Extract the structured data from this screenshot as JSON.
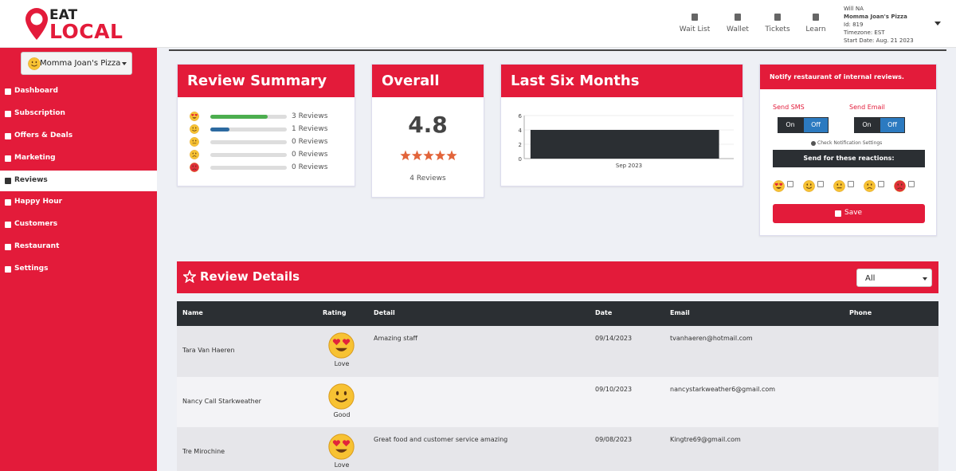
{
  "header": {
    "logo_top": "EAT",
    "logo_bottom": "LOCAL",
    "nav": [
      "Wait List",
      "Wallet",
      "Tickets",
      "Learn"
    ],
    "user": {
      "name": "Will NA",
      "restaurant": "Momma Joan's Pizza",
      "id": "Id: 819",
      "timezone": "Timezone: EST",
      "start_date": "Start Date: Aug. 21 2023"
    }
  },
  "sidebar": {
    "restaurant_select": "Momma Joan's Pizza",
    "menu": [
      "Dashboard",
      "Subscription",
      "Offers & Deals",
      "Marketing",
      "Reviews",
      "Happy Hour",
      "Customers",
      "Restaurant",
      "Settings"
    ],
    "active": 4
  },
  "review_summary": {
    "title": "Review Summary",
    "rows": [
      {
        "count": 3,
        "label": "3 Reviews",
        "color": "#4cae4f"
      },
      {
        "count": 1,
        "label": "1 Reviews",
        "color": "#2c6aa0"
      },
      {
        "count": 0,
        "label": "0 Reviews"
      },
      {
        "count": 0,
        "label": "0 Reviews"
      },
      {
        "count": 0,
        "label": "0 Reviews"
      }
    ]
  },
  "overall": {
    "title": "Overall",
    "rating": "4.8",
    "count_label": "4 Reviews"
  },
  "last_six_months": {
    "title": "Last Six Months",
    "type": "bar",
    "categories": [
      "Sep 2023"
    ],
    "values": [
      4
    ],
    "color": "#2b2f33",
    "ylim": [
      0,
      6
    ],
    "yticks": [
      0,
      2,
      4,
      6
    ]
  },
  "notify": {
    "title": "Notify restaurant of internal reviews.",
    "sms_label": "Send SMS",
    "email_label": "Send Email",
    "on": "On",
    "off": "Off",
    "settings_link": "Check Notification Settings",
    "reactions_title": "Send for these reactions:",
    "save": "Save"
  },
  "review_details": {
    "title": "Review Details",
    "filter": "All",
    "columns": [
      "Name",
      "Rating",
      "Detail",
      "Date",
      "Email",
      "Phone"
    ],
    "rows": [
      {
        "name": "Tara Van Haeren",
        "rating": "Love",
        "detail": "Amazing staff",
        "date": "09/14/2023",
        "email": "tvanhaeren@hotmail.com"
      },
      {
        "name": "Nancy Call Starkweather",
        "rating": "Good",
        "date": "09/10/2023",
        "email": "nancystarkweather6@gmail.com"
      },
      {
        "name": "Tre Mirochine",
        "rating": "Love",
        "detail": "Great food and customer service amazing",
        "date": "09/08/2023",
        "email": "Kingtre69@gmail.com"
      }
    ]
  }
}
